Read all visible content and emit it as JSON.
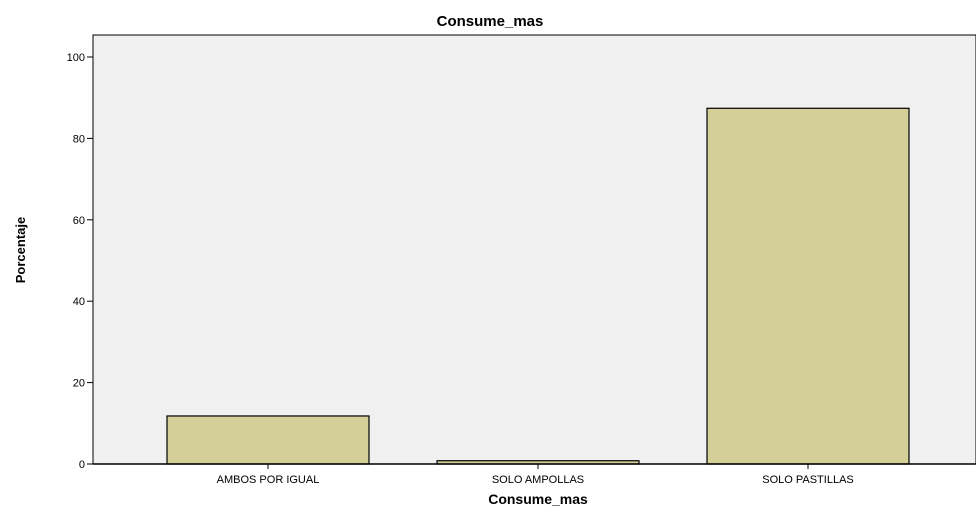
{
  "chart_data": {
    "type": "bar",
    "title": "Consume_mas",
    "xlabel": "Consume_mas",
    "ylabel": "Porcentaje",
    "categories": [
      "AMBOS POR IGUAL",
      "SOLO AMPOLLAS",
      "SOLO PASTILLAS"
    ],
    "values": [
      11.8,
      0.8,
      87.4
    ],
    "ylim": [
      0,
      100
    ],
    "yticks": [
      "0",
      "20",
      "40",
      "60",
      "80",
      "100"
    ],
    "grid": false,
    "legend": "none",
    "bar_color": "#d4cf98",
    "bar_stroke": "#000000",
    "plot_background": "#f0f0f0"
  }
}
